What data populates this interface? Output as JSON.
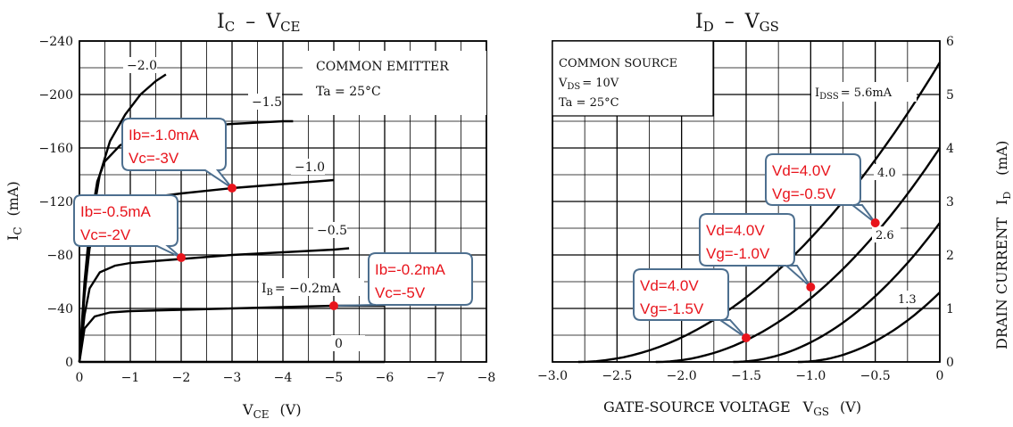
{
  "chart_data": [
    {
      "type": "line",
      "title": "I_C – V_CE",
      "title_main": "I",
      "title_sub1": "C",
      "title_dash": "–",
      "title_main2": "V",
      "title_sub2": "CE",
      "xlabel_main": "V",
      "xlabel_sub": "CE",
      "xlabel_unit": "(V)",
      "ylabel_main": "I",
      "ylabel_sub": "C",
      "ylabel_unit": "(mA)",
      "xlim": [
        0,
        -8
      ],
      "ylim": [
        0,
        -240
      ],
      "x_ticks": [
        {
          "v": 0,
          "label": "0"
        },
        {
          "v": -1,
          "label": "−1"
        },
        {
          "v": -2,
          "label": "−2"
        },
        {
          "v": -3,
          "label": "−3"
        },
        {
          "v": -4,
          "label": "−4"
        },
        {
          "v": -5,
          "label": "−5"
        },
        {
          "v": -6,
          "label": "−6"
        },
        {
          "v": -7,
          "label": "−7"
        },
        {
          "v": -8,
          "label": "−8"
        }
      ],
      "y_ticks": [
        {
          "v": 0,
          "label": "0"
        },
        {
          "v": -40,
          "label": "−40"
        },
        {
          "v": -80,
          "label": "−80"
        },
        {
          "v": -120,
          "label": "−120"
        },
        {
          "v": -160,
          "label": "−160"
        },
        {
          "v": -200,
          "label": "−200"
        },
        {
          "v": -240,
          "label": "−240"
        }
      ],
      "annotation_line1": "COMMON EMITTER",
      "annotation_line2": "Ta = 25°C",
      "series": [
        {
          "name": "−2.0",
          "label": "−2.0",
          "x": [
            0,
            -0.1,
            -0.2,
            -0.4,
            -0.6,
            -0.9,
            -1.2,
            -1.5,
            -1.7
          ],
          "y": [
            0,
            -55,
            -95,
            -140,
            -165,
            -185,
            -200,
            -210,
            -215
          ]
        },
        {
          "name": "−1.5",
          "label": "−1.5",
          "x": [
            0,
            -0.1,
            -0.2,
            -0.35,
            -0.5,
            -0.8,
            -1.2,
            -2,
            -3,
            -4,
            -4.2
          ],
          "y": [
            0,
            -60,
            -100,
            -135,
            -150,
            -162,
            -170,
            -175,
            -178,
            -180,
            -180
          ]
        },
        {
          "name": "−1.0",
          "label": "−1.0",
          "x": [
            0,
            -0.1,
            -0.2,
            -0.35,
            -0.6,
            -1,
            -2,
            -3,
            -4,
            -5
          ],
          "y": [
            0,
            -50,
            -85,
            -105,
            -115,
            -121,
            -126,
            -130,
            -133,
            -136
          ]
        },
        {
          "name": "−0.5",
          "label": "−0.5",
          "x": [
            0,
            -0.1,
            -0.2,
            -0.4,
            -0.7,
            -1,
            -2,
            -3,
            -4,
            -5,
            -5.3
          ],
          "y": [
            0,
            -35,
            -55,
            -67,
            -72,
            -74,
            -77,
            -80,
            -82,
            -84,
            -85
          ]
        },
        {
          "name": "I_B = −0.2mA",
          "label_main": "I",
          "label_sub": "B",
          "label_rest": "= −0.2mA",
          "x": [
            0,
            -0.1,
            -0.3,
            -0.6,
            -1,
            -2,
            -3,
            -4,
            -5,
            -6
          ],
          "y": [
            0,
            -25,
            -34,
            -37,
            -38,
            -39,
            -40,
            -41,
            -42,
            -42
          ]
        },
        {
          "name": "0",
          "label": "0",
          "x": [
            0,
            -6
          ],
          "y": [
            0,
            0
          ]
        }
      ],
      "callouts": [
        {
          "line1": "Ib=-1.0mA",
          "line2": "Vc=-3V",
          "point": [
            -3,
            -130
          ]
        },
        {
          "line1": "Ib=-0.5mA",
          "line2": "Vc=-2V",
          "point": [
            -2,
            -78
          ]
        },
        {
          "line1": "Ib=-0.2mA",
          "line2": "Vc=-5V",
          "point": [
            -5,
            -42
          ]
        }
      ]
    },
    {
      "type": "line",
      "title": "I_D – V_GS",
      "title_main": "I",
      "title_sub1": "D",
      "title_dash": "–",
      "title_main2": "V",
      "title_sub2": "GS",
      "xlabel_text": "GATE-SOURCE VOLTAGE",
      "xlabel_main": "V",
      "xlabel_sub": "GS",
      "xlabel_unit": "(V)",
      "ylabel_text": "DRAIN CURRENT",
      "ylabel_main": "I",
      "ylabel_sub": "D",
      "ylabel_unit": "(mA)",
      "xlim": [
        -3,
        0
      ],
      "ylim": [
        0,
        6
      ],
      "x_ticks": [
        {
          "v": -3,
          "label": "−3.0"
        },
        {
          "v": -2.5,
          "label": "−2.5"
        },
        {
          "v": -2,
          "label": "−2.0"
        },
        {
          "v": -1.5,
          "label": "−1.5"
        },
        {
          "v": -1,
          "label": "−1.0"
        },
        {
          "v": -0.5,
          "label": "−0.5"
        },
        {
          "v": 0,
          "label": "0"
        }
      ],
      "y_ticks": [
        {
          "v": 0,
          "label": "0"
        },
        {
          "v": 1,
          "label": "1"
        },
        {
          "v": 2,
          "label": "2"
        },
        {
          "v": 3,
          "label": "3"
        },
        {
          "v": 4,
          "label": "4"
        },
        {
          "v": 5,
          "label": "5"
        },
        {
          "v": 6,
          "label": "6"
        }
      ],
      "annotation_line1": "COMMON SOURCE",
      "annotation_line2_main": "V",
      "annotation_line2_sub": "DS",
      "annotation_line2_rest": "= 10V",
      "annotation_line3": "Ta = 25°C",
      "series": [
        {
          "name": "I_DSS = 5.6mA",
          "label_main": "I",
          "label_sub": "DSS",
          "label_rest": "= 5.6mA",
          "idss": 5.6,
          "vp": -2.8
        },
        {
          "name": "4.0",
          "label": "4.0",
          "idss": 4.0,
          "vp": -2.2
        },
        {
          "name": "2.6",
          "label": "2.6",
          "idss": 2.6,
          "vp": -1.6
        },
        {
          "name": "1.3",
          "label": "1.3",
          "idss": 1.3,
          "vp": -1.1
        }
      ],
      "callouts": [
        {
          "line1": "Vd=4.0V",
          "line2": "Vg=-0.5V",
          "point": [
            -0.5,
            2.6
          ]
        },
        {
          "line1": "Vd=4.0V",
          "line2": "Vg=-1.0V",
          "point": [
            -1.0,
            1.4
          ]
        },
        {
          "line1": "Vd=4.0V",
          "line2": "Vg=-1.5V",
          "point": [
            -1.5,
            0.45
          ]
        }
      ]
    }
  ],
  "colors": {
    "grid": "#000000",
    "curve": "#000000",
    "callout_fill": "#ffffff",
    "callout_border": "#4d6f8f",
    "callout_text": "#e8141c",
    "marker": "#e8141c"
  }
}
